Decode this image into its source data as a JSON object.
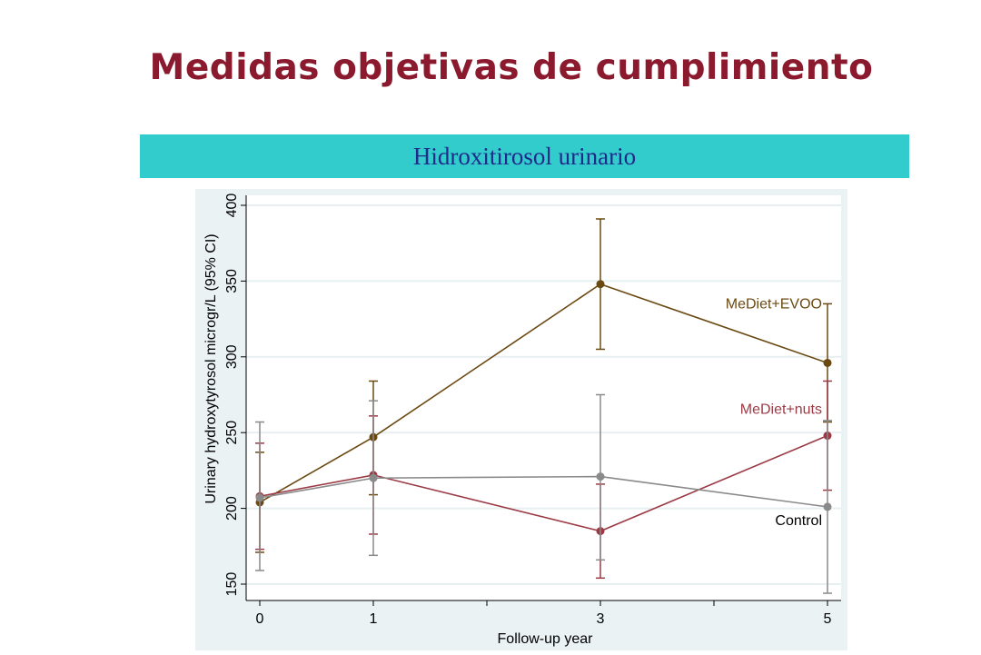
{
  "slide": {
    "title": "Medidas objetivas de cumplimiento",
    "banner": "Hidroxitirosol urinario"
  },
  "colors": {
    "title": "#8b1a2e",
    "banner_bg": "#33cccc",
    "banner_text": "#1f2a8a",
    "panel_bg": "#eaf2f3",
    "plot_bg": "#ffffff",
    "axis": "#000000",
    "grid": "#e7eff1"
  },
  "chart_data": {
    "type": "line",
    "title": "",
    "xlabel": "Follow-up year",
    "ylabel": "Urinary hydroxytyrosol microgr/L (95% CI)",
    "xlim": [
      0,
      5
    ],
    "ylim": [
      150,
      400
    ],
    "x_ticks_labeled": [
      0,
      1,
      3,
      5
    ],
    "x_ticks_unlabeled": [
      2,
      4
    ],
    "y_ticks": [
      150,
      200,
      250,
      300,
      350,
      400
    ],
    "grid": true,
    "legend": "inline labels at right end of each series",
    "series": [
      {
        "name": "MeDiet+EVOO",
        "color": "#6b4a12",
        "points": [
          {
            "x": 0,
            "y": 204,
            "lo": 171,
            "hi": 237
          },
          {
            "x": 1,
            "y": 247,
            "lo": 209,
            "hi": 284
          },
          {
            "x": 3,
            "y": 348,
            "lo": 305,
            "hi": 391
          },
          {
            "x": 5,
            "y": 296,
            "lo": 257,
            "hi": 335
          }
        ]
      },
      {
        "name": "MeDiet+nuts",
        "color": "#9b3a45",
        "points": [
          {
            "x": 0,
            "y": 208,
            "lo": 173,
            "hi": 243
          },
          {
            "x": 1,
            "y": 222,
            "lo": 183,
            "hi": 261
          },
          {
            "x": 3,
            "y": 185,
            "lo": 154,
            "hi": 216
          },
          {
            "x": 5,
            "y": 248,
            "lo": 212,
            "hi": 284
          }
        ]
      },
      {
        "name": "Control",
        "color": "#8a8a8a",
        "points": [
          {
            "x": 0,
            "y": 207,
            "lo": 159,
            "hi": 257
          },
          {
            "x": 1,
            "y": 220,
            "lo": 169,
            "hi": 271
          },
          {
            "x": 3,
            "y": 221,
            "lo": 166,
            "hi": 275
          },
          {
            "x": 5,
            "y": 201,
            "lo": 144,
            "hi": 258
          }
        ]
      }
    ]
  }
}
